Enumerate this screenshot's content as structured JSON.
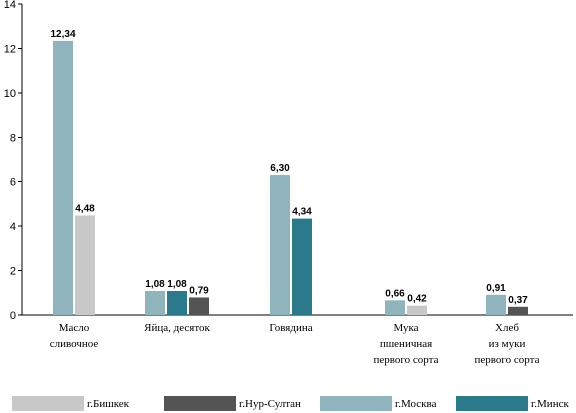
{
  "chart_data": {
    "type": "bar",
    "ylim": [
      0,
      14
    ],
    "yticks": [
      0,
      2,
      4,
      6,
      8,
      10,
      12,
      14
    ],
    "grid": false,
    "legend_position": "bottom",
    "categories": [
      [
        "Масло",
        "сливочное"
      ],
      [
        "Яйца,  десяток"
      ],
      [
        "Говядина"
      ],
      [
        "Мука",
        "пшеничная",
        "первого сорта"
      ],
      [
        "Хлеб",
        "из муки",
        "первого сорта"
      ]
    ],
    "series": [
      {
        "name": "г.Бишкек",
        "color": "#c8c8c8"
      },
      {
        "name": "г.Нур-Султан",
        "color": "#545454"
      },
      {
        "name": "г.Москва",
        "color": "#8fb4be"
      },
      {
        "name": "г.Минск",
        "color": "#2a7a8c"
      }
    ],
    "groups": [
      {
        "bars": [
          {
            "series": "г.Москва",
            "value": 12.34,
            "label": "12,34"
          },
          {
            "series": "г.Бишкек",
            "value": 4.48,
            "label": "4,48"
          }
        ]
      },
      {
        "bars": [
          {
            "series": "г.Москва",
            "value": 1.08,
            "label": "1,08"
          },
          {
            "series": "г.Минск",
            "value": 1.08,
            "label": "1,08"
          },
          {
            "series": "г.Нур-Султан",
            "value": 0.79,
            "label": "0,79"
          }
        ]
      },
      {
        "bars": [
          {
            "series": "г.Москва",
            "value": 6.3,
            "label": "6,30"
          },
          {
            "series": "г.Минск",
            "value": 4.34,
            "label": "4,34"
          }
        ]
      },
      {
        "bars": [
          {
            "series": "г.Москва",
            "value": 0.66,
            "label": "0,66"
          },
          {
            "series": "г.Бишкек",
            "value": 0.42,
            "label": "0,42"
          }
        ]
      },
      {
        "bars": [
          {
            "series": "г.Москва",
            "value": 0.91,
            "label": "0,91"
          },
          {
            "series": "г.Нур-Султан",
            "value": 0.37,
            "label": "0,37"
          }
        ]
      }
    ]
  }
}
